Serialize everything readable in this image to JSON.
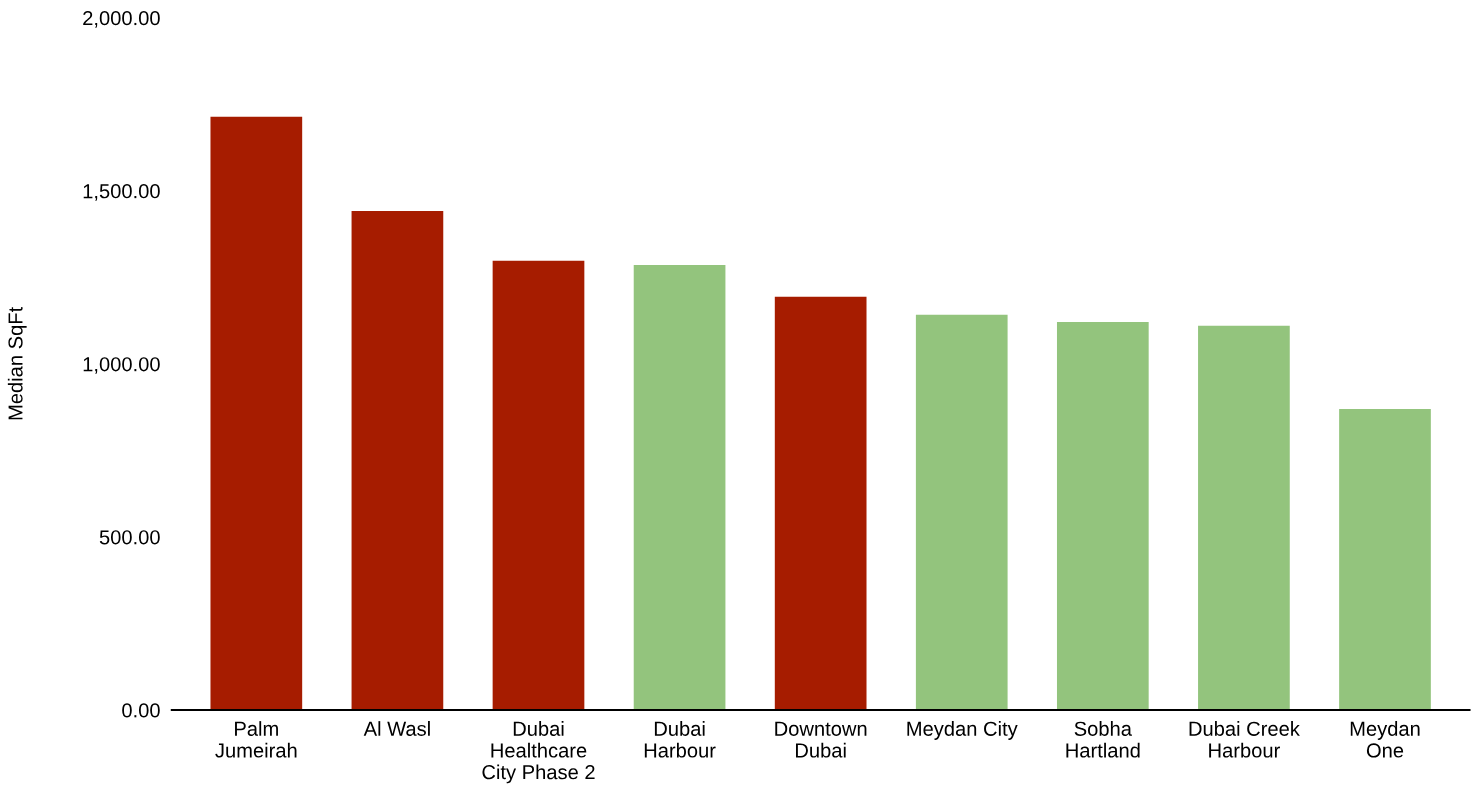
{
  "chart_data": {
    "type": "bar",
    "ylabel": "Median SqFt",
    "categories": [
      "Palm\nJumeirah",
      "Al Wasl",
      "Dubai\nHealthcare\nCity Phase 2",
      "Dubai\nHarbour",
      "Downtown\nDubai",
      "Meydan City",
      "Sobha\nHartland",
      "Dubai Creek\nHarbour",
      "Meydan\nOne"
    ],
    "values": [
      1714,
      1442,
      1298,
      1286,
      1194,
      1142,
      1121,
      1110,
      870
    ],
    "colors": [
      "#a61c00",
      "#a61c00",
      "#a61c00",
      "#93c47d",
      "#a61c00",
      "#93c47d",
      "#93c47d",
      "#93c47d",
      "#93c47d"
    ],
    "ylim": [
      0,
      2000
    ],
    "yticks": [
      {
        "value": 0,
        "label": "0.00"
      },
      {
        "value": 500,
        "label": "500.00"
      },
      {
        "value": 1000,
        "label": "1,000.00"
      },
      {
        "value": 1500,
        "label": "1,500.00"
      },
      {
        "value": 2000,
        "label": "2,000.00"
      }
    ],
    "grid": false,
    "legend": false
  }
}
